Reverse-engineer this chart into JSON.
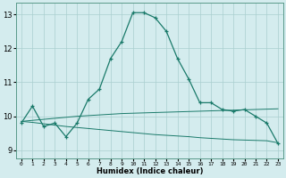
{
  "xlabel": "Humidex (Indice chaleur)",
  "bg_color": "#d4ecee",
  "grid_color": "#aacfcf",
  "line_color": "#1a7a6a",
  "x_ticks": [
    0,
    1,
    2,
    3,
    4,
    5,
    6,
    7,
    8,
    9,
    10,
    11,
    12,
    13,
    14,
    15,
    16,
    17,
    18,
    19,
    20,
    21,
    22,
    23
  ],
  "ylim": [
    8.75,
    13.35
  ],
  "y_ticks": [
    9,
    10,
    11,
    12,
    13
  ],
  "curve1_x": [
    0,
    1,
    2,
    3,
    4,
    5,
    6,
    7,
    8,
    9,
    10,
    11,
    12,
    13,
    14,
    15,
    16,
    17,
    18,
    19,
    20,
    21,
    22,
    23
  ],
  "curve1_y": [
    9.8,
    10.3,
    9.7,
    9.8,
    9.4,
    9.8,
    10.5,
    10.8,
    11.7,
    12.2,
    13.05,
    13.05,
    12.9,
    12.5,
    11.7,
    11.1,
    10.4,
    10.4,
    10.2,
    10.15,
    10.2,
    10.0,
    9.8,
    9.2
  ],
  "curve2_x": [
    0,
    1,
    2,
    3,
    4,
    5,
    6,
    7,
    8,
    9,
    10,
    11,
    12,
    13,
    14,
    15,
    16,
    17,
    18,
    19,
    20,
    21,
    22,
    23
  ],
  "curve2_y": [
    9.85,
    9.88,
    9.91,
    9.94,
    9.97,
    10.0,
    10.02,
    10.04,
    10.06,
    10.08,
    10.09,
    10.1,
    10.11,
    10.12,
    10.13,
    10.14,
    10.15,
    10.16,
    10.17,
    10.18,
    10.19,
    10.2,
    10.21,
    10.22
  ],
  "curve3_x": [
    0,
    1,
    2,
    3,
    4,
    5,
    6,
    7,
    8,
    9,
    10,
    11,
    12,
    13,
    14,
    15,
    16,
    17,
    18,
    19,
    20,
    21,
    22,
    23
  ],
  "curve3_y": [
    9.85,
    9.82,
    9.78,
    9.74,
    9.7,
    9.67,
    9.64,
    9.61,
    9.58,
    9.55,
    9.52,
    9.49,
    9.46,
    9.44,
    9.42,
    9.4,
    9.37,
    9.35,
    9.33,
    9.31,
    9.3,
    9.29,
    9.28,
    9.22
  ]
}
